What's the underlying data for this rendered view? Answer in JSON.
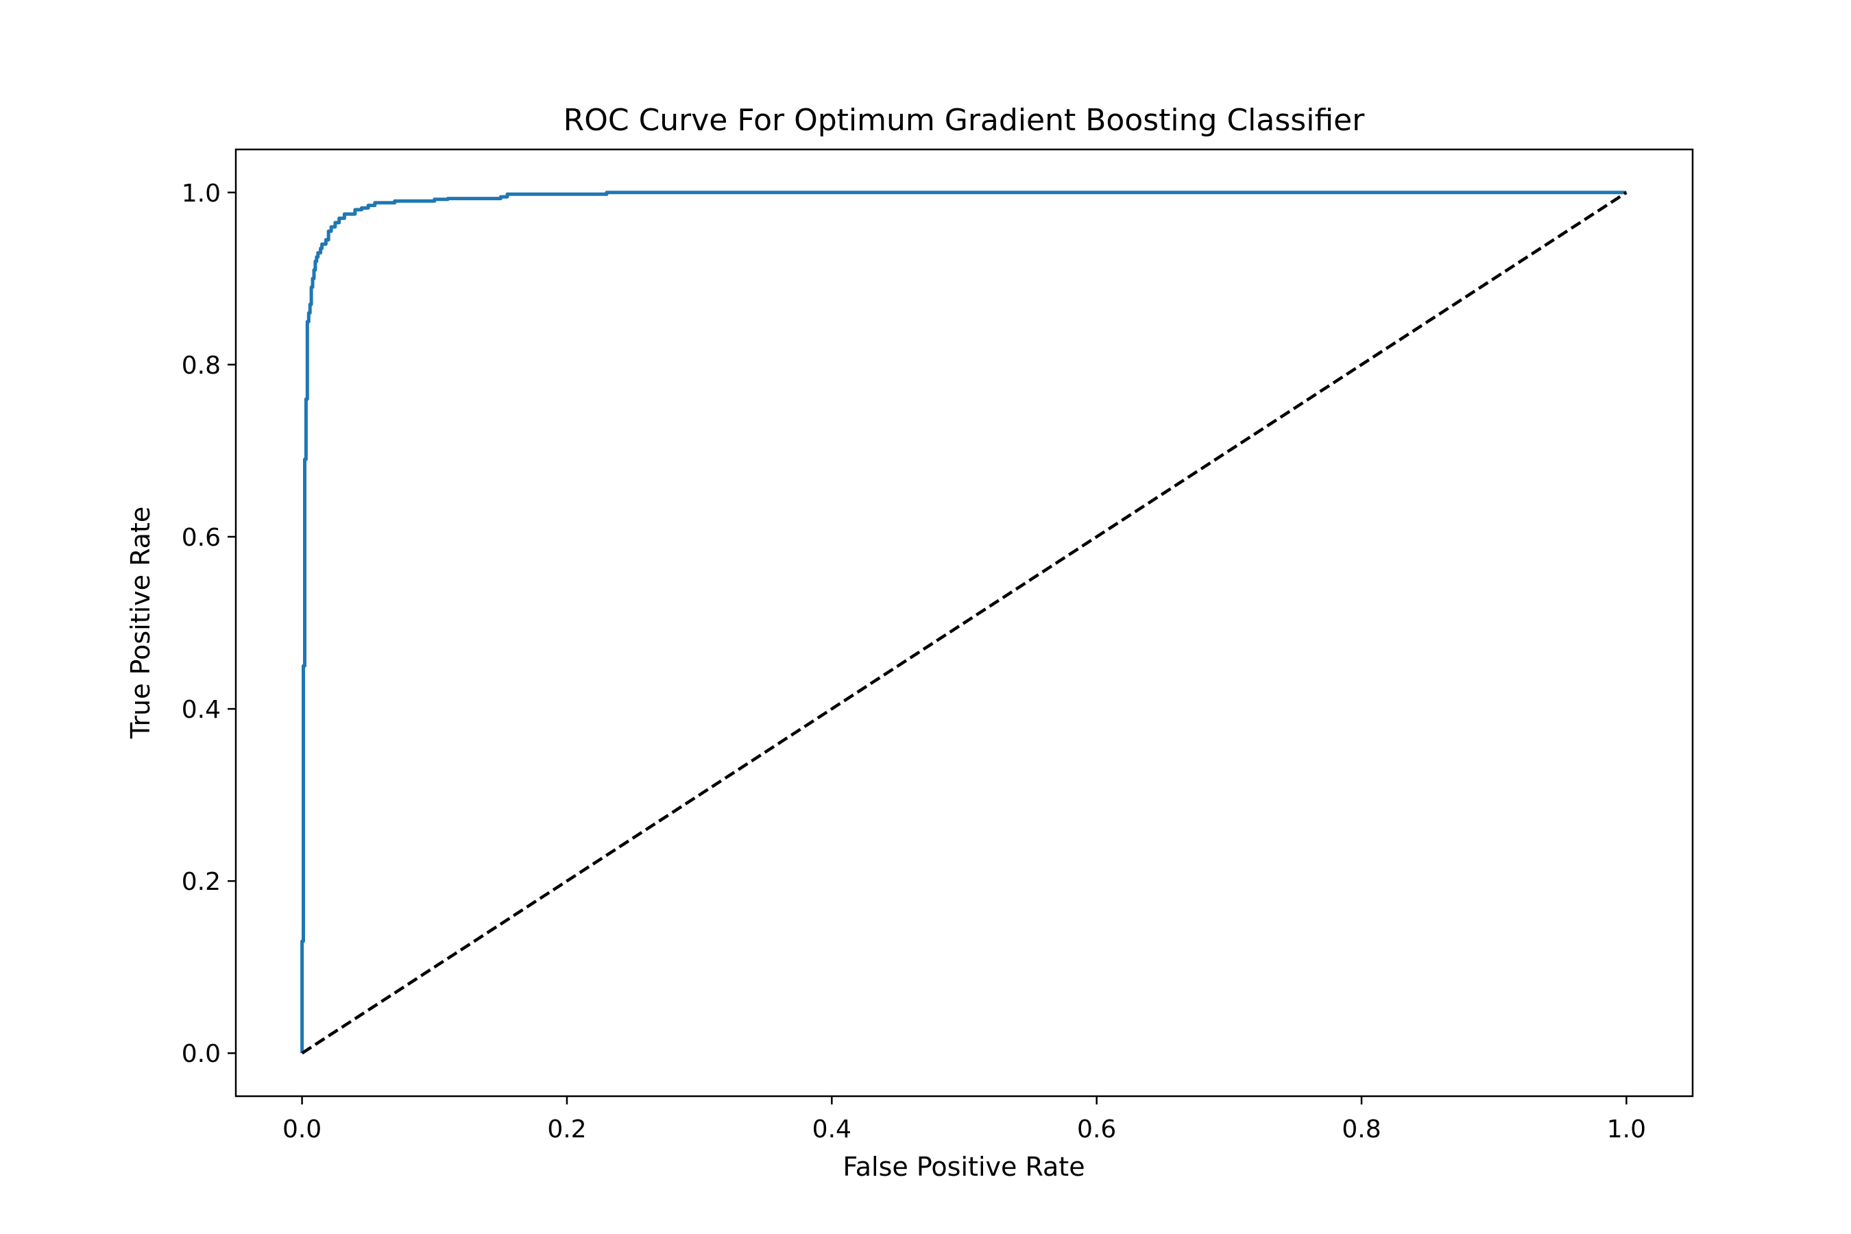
{
  "chart_data": {
    "type": "line",
    "title": "ROC Curve For Optimum Gradient Boosting Classifier",
    "xlabel": "False Positive Rate",
    "ylabel": "True Positive Rate",
    "xlim": [
      -0.05,
      1.05
    ],
    "ylim": [
      -0.05,
      1.05
    ],
    "xticks": [
      0.0,
      0.2,
      0.4,
      0.6,
      0.8,
      1.0
    ],
    "xtick_labels": [
      "0.0",
      "0.2",
      "0.4",
      "0.6",
      "0.8",
      "1.0"
    ],
    "yticks": [
      0.0,
      0.2,
      0.4,
      0.6,
      0.8,
      1.0
    ],
    "ytick_labels": [
      "0.0",
      "0.2",
      "0.4",
      "0.6",
      "0.8",
      "1.0"
    ],
    "grid": false,
    "legend": false,
    "series": [
      {
        "color": "#1f77b4",
        "style": "solid",
        "x": [
          0.0,
          0.0,
          0.001,
          0.001,
          0.002,
          0.002,
          0.003,
          0.003,
          0.004,
          0.004,
          0.005,
          0.006,
          0.007,
          0.007,
          0.008,
          0.009,
          0.01,
          0.011,
          0.012,
          0.013,
          0.014,
          0.015,
          0.015,
          0.018,
          0.018,
          0.02,
          0.022,
          0.025,
          0.028,
          0.03,
          0.032,
          0.035,
          0.04,
          0.045,
          0.05,
          0.055,
          0.06,
          0.065,
          0.07,
          0.08,
          0.09,
          0.1,
          0.11,
          0.13,
          0.15,
          0.155,
          0.2,
          0.23,
          0.5,
          1.0
        ],
        "y": [
          0.0,
          0.13,
          0.27,
          0.45,
          0.6,
          0.69,
          0.73,
          0.76,
          0.79,
          0.85,
          0.86,
          0.87,
          0.88,
          0.89,
          0.9,
          0.91,
          0.92,
          0.925,
          0.93,
          0.93,
          0.935,
          0.935,
          0.94,
          0.94,
          0.945,
          0.955,
          0.96,
          0.965,
          0.97,
          0.97,
          0.975,
          0.975,
          0.98,
          0.982,
          0.985,
          0.988,
          0.988,
          0.988,
          0.99,
          0.99,
          0.99,
          0.992,
          0.993,
          0.993,
          0.995,
          0.998,
          0.998,
          1.0,
          1.0,
          1.0
        ]
      },
      {
        "color": "#000000",
        "style": "dashed",
        "x": [
          0.0,
          1.0
        ],
        "y": [
          0.0,
          1.0
        ]
      }
    ]
  }
}
